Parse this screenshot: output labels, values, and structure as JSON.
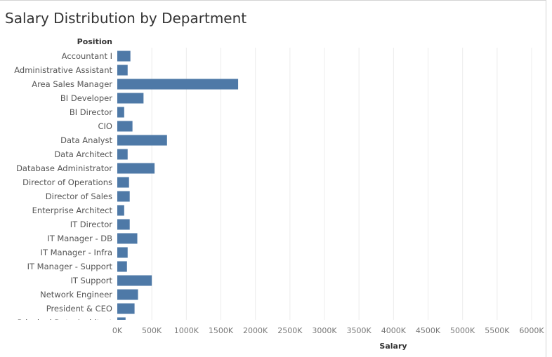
{
  "title": "Salary Distribution by Department",
  "chart_data": {
    "type": "bar",
    "orientation": "horizontal",
    "ylabel": "Position",
    "xlabel": "Salary",
    "xlim": [
      0,
      6000000
    ],
    "xticks": [
      "0K",
      "500K",
      "1000K",
      "1500K",
      "2000K",
      "2500K",
      "3000K",
      "3500K",
      "4000K",
      "4500K",
      "5000K",
      "5500K",
      "6000K"
    ],
    "grid": true,
    "color": "#4e79a7",
    "categories": [
      "Accountant I",
      "Administrative Assistant",
      "Area Sales Manager",
      "BI Developer",
      "BI Director",
      "CIO",
      "Data Analyst",
      "Data Architect",
      "Database Administrator",
      "Director of Operations",
      "Director of Sales",
      "Enterprise Architect",
      "IT Director",
      "IT Manager - DB",
      "IT Manager - Infra",
      "IT Manager - Support",
      "IT Support",
      "Network Engineer",
      "President & CEO",
      "Principal Data Architect"
    ],
    "values": [
      190000,
      150000,
      1750000,
      380000,
      100000,
      220000,
      720000,
      150000,
      540000,
      170000,
      180000,
      100000,
      180000,
      290000,
      150000,
      140000,
      500000,
      300000,
      250000,
      120000
    ]
  }
}
